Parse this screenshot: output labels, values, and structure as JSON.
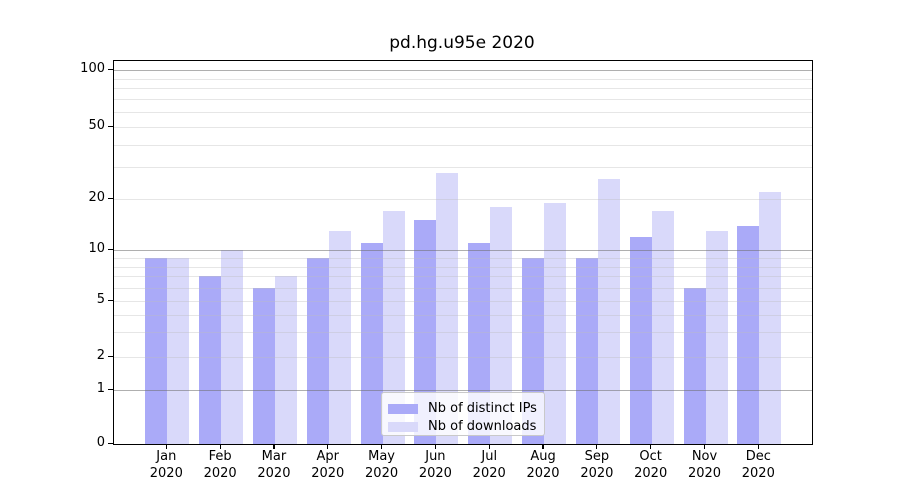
{
  "title": "pd.hg.u95e 2020",
  "chart_data": {
    "type": "bar",
    "title": "pd.hg.u95e 2020",
    "categories": [
      "Jan 2020",
      "Feb 2020",
      "Mar 2020",
      "Apr 2020",
      "May 2020",
      "Jun 2020",
      "Jul 2020",
      "Aug 2020",
      "Sep 2020",
      "Oct 2020",
      "Nov 2020",
      "Dec 2020"
    ],
    "series": [
      {
        "name": "Nb of distinct IPs",
        "color": "#aaaaf8",
        "values": [
          9,
          7,
          6,
          9,
          11,
          15,
          11,
          9,
          9,
          12,
          6,
          14
        ]
      },
      {
        "name": "Nb of downloads",
        "color": "#d9d9fa",
        "values": [
          9,
          10,
          7,
          13,
          17,
          28,
          18,
          19,
          26,
          17,
          13,
          22
        ]
      }
    ],
    "xlabel": "",
    "ylabel": "",
    "yticks": [
      0,
      1,
      2,
      5,
      10,
      20,
      50,
      100
    ],
    "ylim": [
      0,
      112
    ],
    "yscale": "log-like, compressed toward zero, ticks at 0/1/2/5/10/20/50/100",
    "grid": "horizontal: major lines at 1,10,100 and faint log minors, drawn over bars",
    "legend_position": "lower center, inside axes"
  },
  "colors": {
    "distinct_ips": "#aaaaf8",
    "downloads": "#d9d9fa",
    "grid_major": "#b0b0b0",
    "grid_minor": "#e7e7e7",
    "axis": "#000000",
    "background": "#ffffff"
  }
}
